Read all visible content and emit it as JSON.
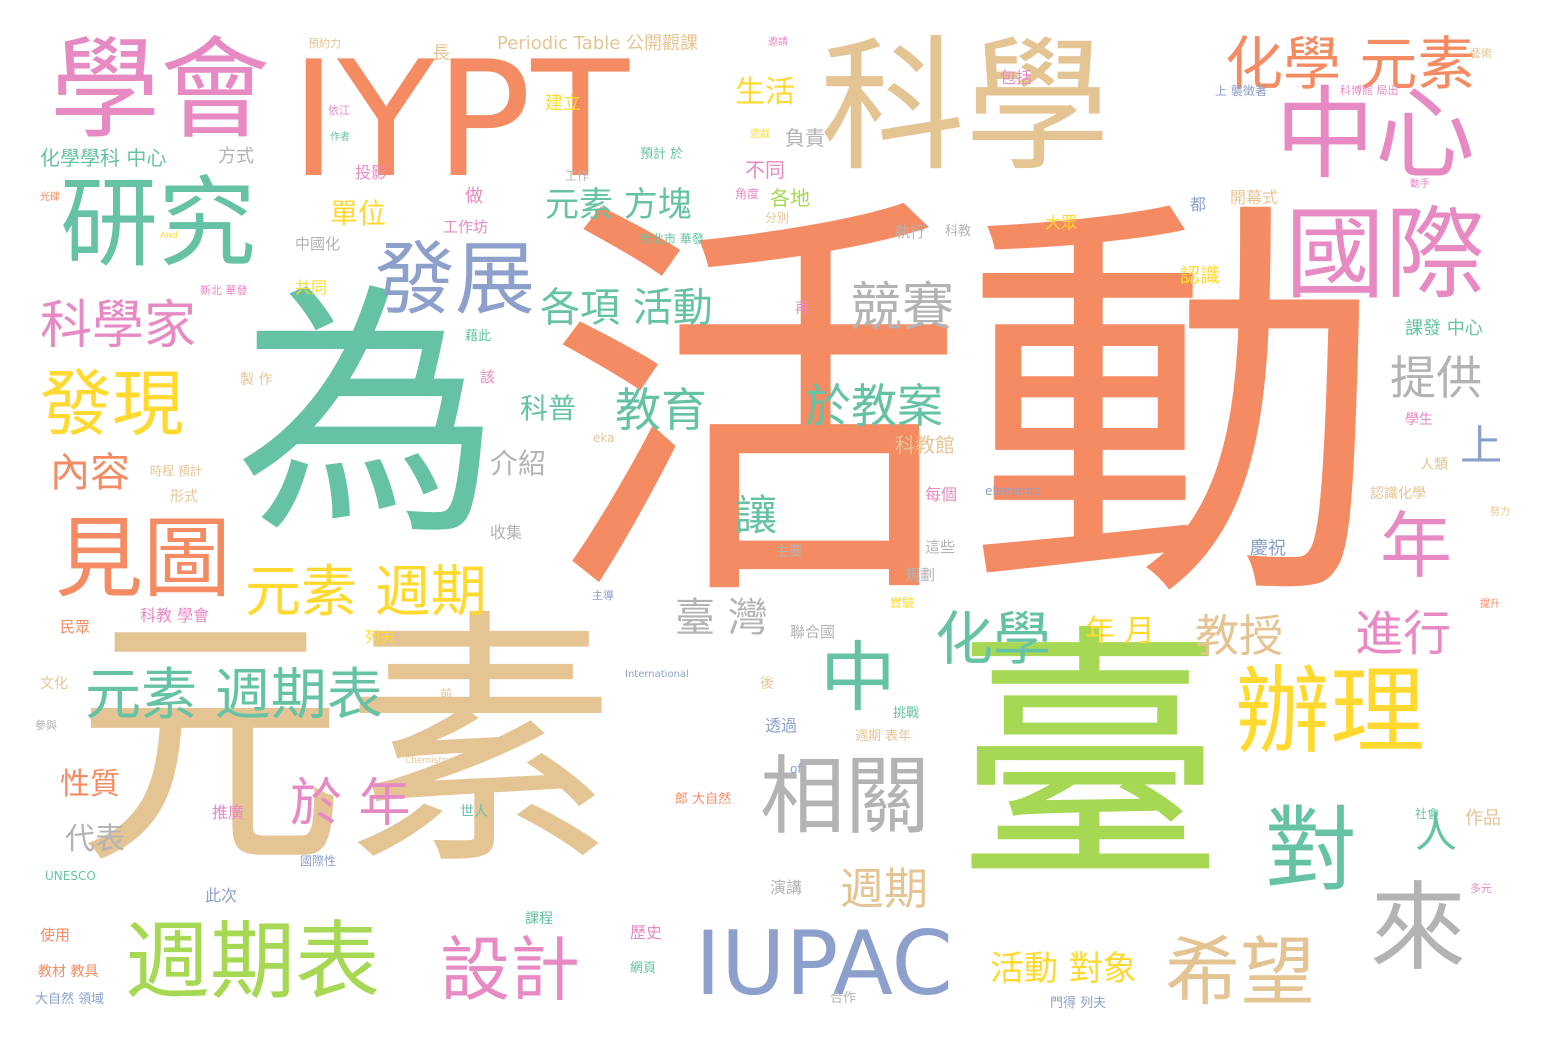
{
  "palette": {
    "orange": "#f58b62",
    "teal": "#66c2a5",
    "tan": "#e5c494",
    "green": "#a6d854",
    "pink": "#e78ac3",
    "blue": "#8da0cb",
    "yellow": "#ffd92f",
    "gray": "#b3b3b3"
  },
  "words": [
    {
      "text": "活動",
      "color": "orange"
    },
    {
      "text": "為",
      "color": "teal"
    },
    {
      "text": "元素",
      "color": "tan"
    },
    {
      "text": "臺",
      "color": "green"
    },
    {
      "text": "IYPT",
      "color": "orange"
    },
    {
      "text": "科學",
      "color": "tan"
    },
    {
      "text": "學會",
      "color": "pink"
    },
    {
      "text": "中心",
      "color": "pink"
    },
    {
      "text": "研究",
      "color": "teal"
    },
    {
      "text": "國際",
      "color": "pink"
    },
    {
      "text": "發展",
      "color": "blue"
    },
    {
      "text": "化學 元素",
      "color": "orange"
    },
    {
      "text": "辦理",
      "color": "yellow"
    },
    {
      "text": "相關",
      "color": "gray"
    },
    {
      "text": "對",
      "color": "teal"
    },
    {
      "text": "來",
      "color": "gray"
    },
    {
      "text": "IUPAC",
      "color": "blue"
    },
    {
      "text": "週期表",
      "color": "green"
    },
    {
      "text": "希望",
      "color": "tan"
    },
    {
      "text": "設計",
      "color": "pink"
    },
    {
      "text": "見圖",
      "color": "orange"
    },
    {
      "text": "發現",
      "color": "yellow"
    },
    {
      "text": "科學家",
      "color": "pink"
    },
    {
      "text": "中",
      "color": "teal"
    },
    {
      "text": "年",
      "color": "pink"
    },
    {
      "text": "元素 週期",
      "color": "yellow"
    },
    {
      "text": "元素 週期表",
      "color": "teal"
    },
    {
      "text": "化學",
      "color": "teal"
    },
    {
      "text": "於 年",
      "color": "pink"
    },
    {
      "text": "競賽",
      "color": "gray"
    },
    {
      "text": "教授",
      "color": "tan"
    },
    {
      "text": "進行",
      "color": "pink"
    },
    {
      "text": "提供",
      "color": "gray"
    },
    {
      "text": "教育",
      "color": "teal"
    },
    {
      "text": "於教案",
      "color": "teal"
    },
    {
      "text": "各項 活動",
      "color": "teal"
    },
    {
      "text": "元素 方塊",
      "color": "teal"
    },
    {
      "text": "內容",
      "color": "orange"
    },
    {
      "text": "週期",
      "color": "tan"
    },
    {
      "text": "人",
      "color": "teal"
    },
    {
      "text": "上",
      "color": "blue"
    },
    {
      "text": "讓",
      "color": "teal"
    },
    {
      "text": "臺 灣",
      "color": "gray"
    },
    {
      "text": "活動 對象",
      "color": "yellow"
    },
    {
      "text": "生活",
      "color": "yellow"
    },
    {
      "text": "單位",
      "color": "yellow"
    },
    {
      "text": "介紹",
      "color": "gray"
    },
    {
      "text": "科普",
      "color": "teal"
    },
    {
      "text": "性質",
      "color": "orange"
    },
    {
      "text": "代表",
      "color": "gray"
    },
    {
      "text": "年 月",
      "color": "yellow"
    },
    {
      "text": "化學學科 中心",
      "color": "teal"
    },
    {
      "text": "Periodic Table 公開觀課",
      "color": "tan"
    },
    {
      "text": "方式",
      "color": "gray"
    },
    {
      "text": "建立",
      "color": "yellow"
    },
    {
      "text": "負責",
      "color": "gray"
    },
    {
      "text": "不同",
      "color": "pink"
    },
    {
      "text": "各地",
      "color": "green"
    },
    {
      "text": "科教館",
      "color": "tan"
    },
    {
      "text": "認識",
      "color": "yellow"
    },
    {
      "text": "課發 中心",
      "color": "teal"
    },
    {
      "text": "包括",
      "color": "pink"
    },
    {
      "text": "開幕式",
      "color": "tan"
    },
    {
      "text": "大眾",
      "color": "yellow"
    },
    {
      "text": "工作坊",
      "color": "pink"
    },
    {
      "text": "做",
      "color": "pink"
    },
    {
      "text": "共同",
      "color": "yellow"
    },
    {
      "text": "中國化",
      "color": "gray"
    },
    {
      "text": "投影",
      "color": "pink"
    },
    {
      "text": "長",
      "color": "tan"
    },
    {
      "text": "作品",
      "color": "tan"
    },
    {
      "text": "學生",
      "color": "pink"
    },
    {
      "text": "人類",
      "color": "tan"
    },
    {
      "text": "認識化學",
      "color": "tan"
    },
    {
      "text": "慶祝",
      "color": "blue"
    },
    {
      "text": "每個",
      "color": "pink"
    },
    {
      "text": "這些",
      "color": "gray"
    },
    {
      "text": "規劃",
      "color": "gray"
    },
    {
      "text": "演講",
      "color": "gray"
    },
    {
      "text": "主要",
      "color": "gray"
    },
    {
      "text": "聯合國",
      "color": "gray"
    },
    {
      "text": "收集",
      "color": "gray"
    },
    {
      "text": "科教 學會",
      "color": "pink"
    },
    {
      "text": "民眾",
      "color": "orange"
    },
    {
      "text": "列夫",
      "color": "yellow"
    },
    {
      "text": "文化",
      "color": "tan"
    },
    {
      "text": "透過",
      "color": "blue"
    },
    {
      "text": "後",
      "color": "tan"
    },
    {
      "text": "推廣",
      "color": "pink"
    },
    {
      "text": "此次",
      "color": "blue"
    },
    {
      "text": "使用",
      "color": "orange"
    },
    {
      "text": "教材 教具",
      "color": "orange"
    },
    {
      "text": "課程",
      "color": "teal"
    },
    {
      "text": "歷史",
      "color": "pink"
    },
    {
      "text": "網頁",
      "color": "teal"
    },
    {
      "text": "門得 列夫",
      "color": "blue"
    },
    {
      "text": "合作",
      "color": "gray"
    },
    {
      "text": "UNESCO",
      "color": "teal"
    },
    {
      "text": "大自然 領域",
      "color": "blue"
    },
    {
      "text": "elements",
      "color": "blue"
    },
    {
      "text": "International",
      "color": "blue"
    },
    {
      "text": "Chemistry",
      "color": "tan"
    },
    {
      "text": "of",
      "color": "blue"
    },
    {
      "text": "eka",
      "color": "tan"
    },
    {
      "text": "新北 華發",
      "color": "pink"
    },
    {
      "text": "形式",
      "color": "tan"
    },
    {
      "text": "世人",
      "color": "teal"
    },
    {
      "text": "國際性",
      "color": "blue"
    },
    {
      "text": "都",
      "color": "blue"
    },
    {
      "text": "社會",
      "color": "teal"
    },
    {
      "text": "挑戰",
      "color": "teal"
    },
    {
      "text": "實驗",
      "color": "yellow"
    },
    {
      "text": "週期 表年",
      "color": "tan"
    },
    {
      "text": "上 襲徵著",
      "color": "blue"
    },
    {
      "text": "執行",
      "color": "gray"
    },
    {
      "text": "科教",
      "color": "gray"
    },
    {
      "text": "分別",
      "color": "tan"
    },
    {
      "text": "預計 於",
      "color": "teal"
    },
    {
      "text": "工作",
      "color": "gray"
    },
    {
      "text": "角度",
      "color": "pink"
    },
    {
      "text": "新北市 華發",
      "color": "teal"
    },
    {
      "text": "藉此",
      "color": "teal"
    },
    {
      "text": "該",
      "color": "pink"
    },
    {
      "text": "再",
      "color": "pink"
    },
    {
      "text": "參與",
      "color": "gray"
    },
    {
      "text": "前",
      "color": "tan"
    },
    {
      "text": "郎 大自然",
      "color": "orange"
    },
    {
      "text": "製 作",
      "color": "tan"
    },
    {
      "text": "時程 預計",
      "color": "tan"
    },
    {
      "text": "預約力",
      "color": "tan"
    },
    {
      "text": "藝術",
      "color": "tan"
    },
    {
      "text": "努力",
      "color": "tan"
    },
    {
      "text": "提升",
      "color": "orange"
    },
    {
      "text": "科博館 局出",
      "color": "pink"
    },
    {
      "text": "動手",
      "color": "pink"
    },
    {
      "text": "主導",
      "color": "blue"
    },
    {
      "text": "多元",
      "color": "pink"
    },
    {
      "text": "依江",
      "color": "pink"
    },
    {
      "text": "作者",
      "color": "teal"
    },
    {
      "text": "光碟",
      "color": "orange"
    },
    {
      "text": "And",
      "color": "yellow"
    },
    {
      "text": "邀請",
      "color": "pink"
    },
    {
      "text": "遊戲",
      "color": "yellow"
    }
  ]
}
